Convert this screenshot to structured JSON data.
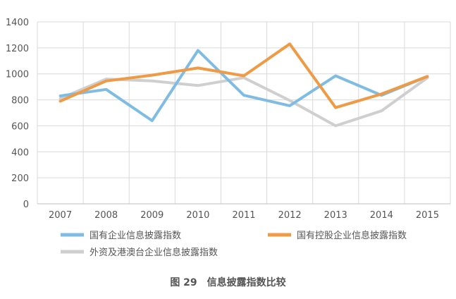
{
  "chart_data": {
    "type": "line",
    "title": "",
    "xlabel": "",
    "ylabel": "",
    "categories": [
      "2007",
      "2008",
      "2009",
      "2010",
      "2011",
      "2012",
      "2013",
      "2014",
      "2015"
    ],
    "ylim": [
      0,
      1400
    ],
    "yticks": [
      0,
      200,
      400,
      600,
      800,
      1000,
      1200,
      1400
    ],
    "grid": true,
    "legend_position": "bottom",
    "series": [
      {
        "name": "国有企业信息披露指数",
        "color": "#7fbce3",
        "values": [
          830,
          880,
          640,
          1180,
          835,
          755,
          985,
          835,
          980
        ]
      },
      {
        "name": "国有控股企业信息披露指数",
        "color": "#ef9a45",
        "values": [
          790,
          945,
          990,
          1045,
          985,
          1230,
          740,
          845,
          980
        ]
      },
      {
        "name": "外资及港澳台企业信息披露指数",
        "color": "#cfcfcf",
        "values": [
          810,
          960,
          945,
          910,
          970,
          795,
          600,
          715,
          970
        ]
      }
    ]
  },
  "caption": "图 29　信息披露指数比较"
}
